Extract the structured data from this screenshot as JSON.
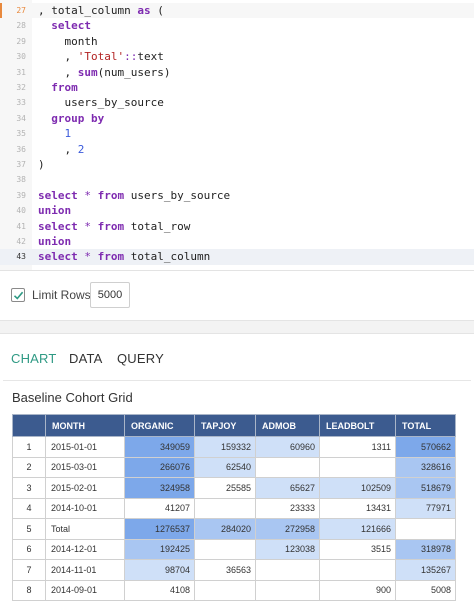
{
  "editor": {
    "lines": [
      {
        "n": "27",
        "tokens": [
          {
            "t": ", total_column ",
            "c": ""
          },
          {
            "t": "as",
            "c": "kw"
          },
          {
            "t": " (",
            "c": ""
          }
        ]
      },
      {
        "n": "28",
        "tokens": [
          {
            "t": "  select",
            "c": "kw"
          }
        ]
      },
      {
        "n": "29",
        "tokens": [
          {
            "t": "    month",
            "c": ""
          }
        ]
      },
      {
        "n": "30",
        "tokens": [
          {
            "t": "    , ",
            "c": ""
          },
          {
            "t": "'Total'",
            "c": "str"
          },
          {
            "t": "::",
            "c": "op"
          },
          {
            "t": "text",
            "c": ""
          }
        ]
      },
      {
        "n": "31",
        "tokens": [
          {
            "t": "    , ",
            "c": ""
          },
          {
            "t": "sum",
            "c": "kw"
          },
          {
            "t": "(num_users)",
            "c": ""
          }
        ]
      },
      {
        "n": "32",
        "tokens": [
          {
            "t": "  from",
            "c": "kw"
          }
        ]
      },
      {
        "n": "33",
        "tokens": [
          {
            "t": "    users_by_source",
            "c": ""
          }
        ]
      },
      {
        "n": "34",
        "tokens": [
          {
            "t": "  group by",
            "c": "kw"
          }
        ]
      },
      {
        "n": "35",
        "tokens": [
          {
            "t": "    ",
            "c": ""
          },
          {
            "t": "1",
            "c": "num"
          }
        ]
      },
      {
        "n": "36",
        "tokens": [
          {
            "t": "    , ",
            "c": ""
          },
          {
            "t": "2",
            "c": "num"
          }
        ]
      },
      {
        "n": "37",
        "tokens": [
          {
            "t": ")",
            "c": ""
          }
        ]
      },
      {
        "n": "38",
        "tokens": []
      },
      {
        "n": "39",
        "tokens": [
          {
            "t": "select",
            "c": "kw"
          },
          {
            "t": " ",
            "c": ""
          },
          {
            "t": "*",
            "c": "op"
          },
          {
            "t": " ",
            "c": ""
          },
          {
            "t": "from",
            "c": "kw"
          },
          {
            "t": " users_by_source",
            "c": ""
          }
        ]
      },
      {
        "n": "40",
        "tokens": [
          {
            "t": "union",
            "c": "kw"
          }
        ]
      },
      {
        "n": "41",
        "tokens": [
          {
            "t": "select",
            "c": "kw"
          },
          {
            "t": " ",
            "c": ""
          },
          {
            "t": "*",
            "c": "op"
          },
          {
            "t": " ",
            "c": ""
          },
          {
            "t": "from",
            "c": "kw"
          },
          {
            "t": " total_row",
            "c": ""
          }
        ]
      },
      {
        "n": "42",
        "tokens": [
          {
            "t": "union",
            "c": "kw"
          }
        ]
      },
      {
        "n": "43",
        "tokens": [
          {
            "t": "select",
            "c": "kw"
          },
          {
            "t": " ",
            "c": ""
          },
          {
            "t": "*",
            "c": "op"
          },
          {
            "t": " ",
            "c": ""
          },
          {
            "t": "from",
            "c": "kw"
          },
          {
            "t": " total_column",
            "c": ""
          }
        ]
      }
    ]
  },
  "limit": {
    "label": "Limit Rows",
    "checked": true,
    "value": "5000"
  },
  "tabs": [
    {
      "label": "CHART",
      "active": true
    },
    {
      "label": "DATA",
      "active": false
    },
    {
      "label": "QUERY",
      "active": false
    }
  ],
  "chart": {
    "title": "Baseline Cohort Grid"
  },
  "chart_data": {
    "type": "table",
    "title": "Baseline Cohort Grid",
    "columns": [
      "MONTH",
      "ORGANIC",
      "TAPJOY",
      "ADMOB",
      "LEADBOLT",
      "TOTAL"
    ],
    "rows": [
      {
        "index": "1",
        "month": "2015-01-01",
        "values": [
          "349059",
          "159332",
          "60960",
          "1311",
          "570662"
        ]
      },
      {
        "index": "2",
        "month": "2015-03-01",
        "values": [
          "266076",
          "62540",
          "",
          "",
          "328616"
        ]
      },
      {
        "index": "3",
        "month": "2015-02-01",
        "values": [
          "324958",
          "25585",
          "65627",
          "102509",
          "518679"
        ]
      },
      {
        "index": "4",
        "month": "2014-10-01",
        "values": [
          "41207",
          "",
          "23333",
          "13431",
          "77971"
        ]
      },
      {
        "index": "5",
        "month": "Total",
        "values": [
          "1276537",
          "284020",
          "272958",
          "121666",
          ""
        ]
      },
      {
        "index": "6",
        "month": "2014-12-01",
        "values": [
          "192425",
          "",
          "123038",
          "3515",
          "318978"
        ]
      },
      {
        "index": "7",
        "month": "2014-11-01",
        "values": [
          "98704",
          "36563",
          "",
          "",
          "135267"
        ]
      },
      {
        "index": "8",
        "month": "2014-09-01",
        "values": [
          "4108",
          "",
          "",
          "900",
          "5008"
        ]
      }
    ],
    "heatmap_colors": {
      "dark": "#7da8ea",
      "mid": "#a9c6f2",
      "light": "#cfe0f8",
      "none": "#ffffff",
      "header": "#3c5b8f"
    }
  },
  "colors": {
    "accent": "#2f9a84",
    "keyword": "#7e2bb0",
    "string": "#b22222",
    "number": "#3b5bdb"
  }
}
